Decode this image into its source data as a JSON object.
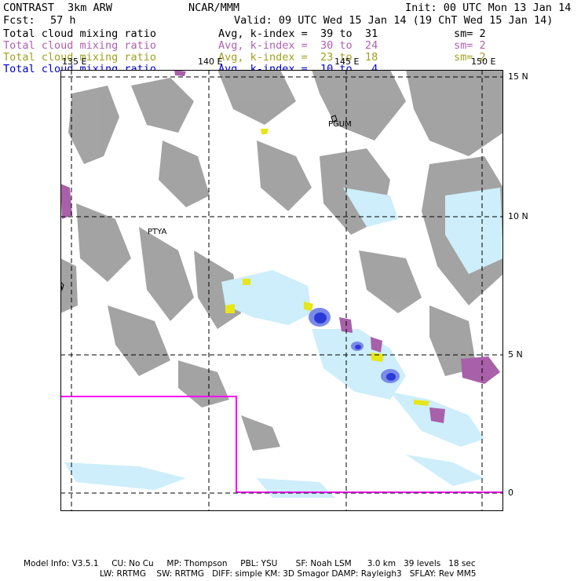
{
  "header": {
    "model": "CONTRAST",
    "model_res": "3km ARW",
    "center": "NCAR/MMM",
    "init": "Init: 00 UTC Mon 13 Jan 14",
    "fcst_label": "Fcst:",
    "fcst_value": "57 h",
    "valid": "Valid: 09 UTC Wed 15 Jan 14 (19 ChT Wed 15 Jan 14)"
  },
  "fields": [
    {
      "name": "Total cloud mixing ratio",
      "range": "Avg, k-index =  39 to  31",
      "smooth": "sm= 2",
      "color": "#000000"
    },
    {
      "name": "Total cloud mixing ratio",
      "range": "Avg, k-index =  30 to  24",
      "smooth": "sm= 2",
      "color": "#b060b0"
    },
    {
      "name": "Total cloud mixing ratio",
      "range": "Avg, k-index =  23 to  18",
      "smooth": "sm= 2",
      "color": "#a0a020"
    },
    {
      "name": "Total cloud mixing ratio",
      "range": "Avg, k-index =  10 to   4",
      "smooth": "",
      "color": "#0000cc"
    }
  ],
  "map": {
    "longitude_labels": [
      "135 E",
      "140 E",
      "145 E",
      "150 E"
    ],
    "latitude_labels": [
      "15 N",
      "10 N",
      "5 N",
      "0"
    ],
    "stations": [
      {
        "label": "PGUM",
        "lon": 144.8,
        "lat": 13.5
      },
      {
        "label": "PTYA",
        "lon": 138.1,
        "lat": 9.5
      }
    ],
    "colors": {
      "upper_cloud": "#9a9a9a",
      "mid_cloud": "#a860a8",
      "low_cloud": "#e6e61a",
      "shallow_cloud": "#cdeefa",
      "core_cloud": "#2a3ad8",
      "domain_box": "#ff00ff",
      "grid": "#000000"
    }
  },
  "footer": {
    "line1": "Model Info: V3.5.1     CU: No Cu     MP: Thompson     PBL: YSU       SF: Noah LSM      3.0 km   39 levels   18 sec",
    "line2": "LW: RRTMG    SW: RRTMG   DIFF: simple KM: 3D Smagor DAMP: Rayleigh3   SFLAY: Rev MM5"
  }
}
